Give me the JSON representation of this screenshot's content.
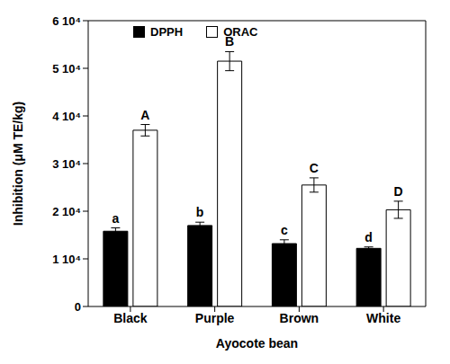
{
  "chart_data": {
    "type": "bar",
    "x_label": "Ayocote bean",
    "y_label": "Inhibition (μM TE/kg)",
    "categories": [
      "Black",
      "Purple",
      "Brown",
      "White"
    ],
    "series": [
      {
        "name": "DPPH",
        "color": "#000000",
        "values": [
          15800,
          17000,
          13200,
          12200
        ],
        "errors": [
          700,
          700,
          800,
          300
        ],
        "letters": [
          "a",
          "b",
          "c",
          "d"
        ]
      },
      {
        "name": "ORAC",
        "color": "#ffffff",
        "values": [
          37000,
          51500,
          25500,
          20300
        ],
        "errors": [
          1200,
          2000,
          1500,
          1800
        ],
        "letters": [
          "A",
          "B",
          "C",
          "D"
        ]
      }
    ],
    "ylim": [
      0,
      60000
    ],
    "yticks": [
      0,
      {
        "value": 10000,
        "label": "1 10⁴"
      },
      {
        "value": 20000,
        "label": "2 10⁴"
      },
      {
        "value": 30000,
        "label": "3 10⁴"
      },
      {
        "value": 40000,
        "label": "4 10⁴"
      },
      {
        "value": 50000,
        "label": "5 10⁴"
      },
      {
        "value": 60000,
        "label": "6 10⁴"
      }
    ],
    "grid": false,
    "legend": "top"
  }
}
